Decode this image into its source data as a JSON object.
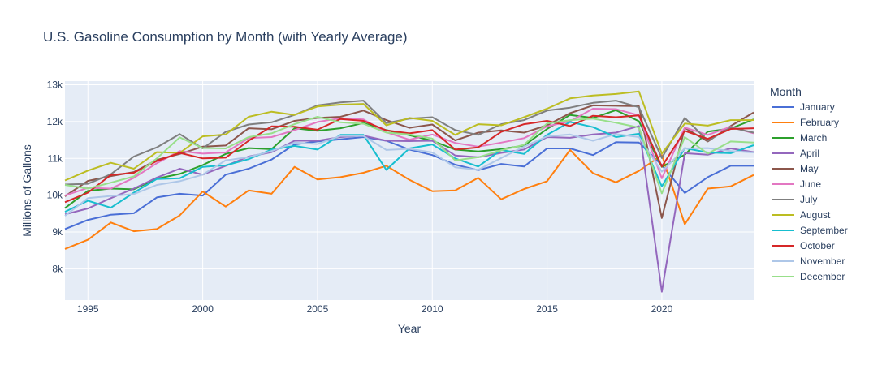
{
  "chart_data": {
    "type": "line",
    "title": "U.S. Gasoline Consumption by Month (with Yearly Average)",
    "xlabel": "Year",
    "ylabel": "Millions of Gallons",
    "legend_title": "Month",
    "legend_position": "right",
    "grid": true,
    "xlim": [
      1994,
      2024
    ],
    "ylim": [
      7150,
      13100
    ],
    "x_ticks": [
      1995,
      2000,
      2005,
      2010,
      2015,
      2020
    ],
    "y_ticks": [
      {
        "value": 8000,
        "label": "8k"
      },
      {
        "value": 9000,
        "label": "9k"
      },
      {
        "value": 10000,
        "label": "10k"
      },
      {
        "value": 11000,
        "label": "11k"
      },
      {
        "value": 12000,
        "label": "12k"
      },
      {
        "value": 13000,
        "label": "13k"
      }
    ],
    "x": [
      1994,
      1995,
      1996,
      1997,
      1998,
      1999,
      2000,
      2001,
      2002,
      2003,
      2004,
      2005,
      2006,
      2007,
      2008,
      2009,
      2010,
      2011,
      2012,
      2013,
      2014,
      2015,
      2016,
      2017,
      2018,
      2019,
      2020,
      2021,
      2022,
      2023,
      2024
    ],
    "series": [
      {
        "name": "January",
        "color": "#4a6fd6",
        "values": [
          9080,
          9330,
          9470,
          9510,
          9940,
          10040,
          9990,
          10560,
          10720,
          10970,
          11380,
          11460,
          11520,
          11580,
          11480,
          11240,
          11090,
          10830,
          10680,
          10850,
          10780,
          11270,
          11270,
          11090,
          11440,
          11430,
          10820,
          10060,
          10490,
          10800,
          10800
        ]
      },
      {
        "name": "February",
        "color": "#ff7f0e",
        "values": [
          8540,
          8790,
          9260,
          9020,
          9080,
          9450,
          10100,
          9690,
          10130,
          10040,
          10770,
          10430,
          10490,
          10610,
          10800,
          10420,
          10110,
          10130,
          10470,
          9890,
          10170,
          10380,
          11230,
          10600,
          10350,
          10660,
          11090,
          9210,
          10180,
          10240,
          10550
        ]
      },
      {
        "name": "March",
        "color": "#2ca02c",
        "values": [
          9650,
          10120,
          10180,
          10160,
          10450,
          10580,
          10820,
          11120,
          11280,
          11250,
          11820,
          11750,
          11820,
          11960,
          11770,
          11630,
          11480,
          11240,
          11190,
          11250,
          11350,
          11800,
          12180,
          12100,
          12310,
          12010,
          10770,
          11100,
          11730,
          11810,
          12060
        ]
      },
      {
        "name": "April",
        "color": "#9467bd",
        "values": [
          9480,
          9640,
          9920,
          10180,
          10480,
          10720,
          10560,
          10800,
          11050,
          11170,
          11480,
          11480,
          11580,
          11620,
          11480,
          11470,
          11480,
          11080,
          11030,
          11150,
          11240,
          11580,
          11560,
          11650,
          11700,
          11880,
          7380,
          11140,
          11100,
          11270,
          11170
        ]
      },
      {
        "name": "May",
        "color": "#8c564b",
        "values": [
          9970,
          10390,
          10520,
          10630,
          10960,
          11120,
          11320,
          11350,
          11820,
          11790,
          12020,
          12100,
          12130,
          12300,
          12040,
          11830,
          11920,
          11490,
          11700,
          11760,
          11700,
          11900,
          12230,
          12440,
          12430,
          12420,
          9380,
          11830,
          11460,
          11880,
          12250
        ]
      },
      {
        "name": "June",
        "color": "#e377c2",
        "values": [
          9990,
          10200,
          10180,
          10470,
          10870,
          11200,
          11130,
          11160,
          11550,
          11580,
          11770,
          11990,
          12090,
          12060,
          11710,
          11510,
          11650,
          11420,
          11320,
          11430,
          11550,
          11870,
          12010,
          12350,
          12340,
          12170,
          10460,
          11840,
          11640,
          11860,
          11680
        ]
      },
      {
        "name": "July",
        "color": "#7f7f7f",
        "values": [
          10290,
          10310,
          10570,
          11050,
          11300,
          11660,
          11270,
          11720,
          11920,
          11980,
          12180,
          12440,
          12520,
          12570,
          11960,
          12080,
          12120,
          11770,
          11640,
          11930,
          12040,
          12300,
          12380,
          12510,
          12570,
          12390,
          11010,
          12100,
          11480,
          11840,
          11700
        ]
      },
      {
        "name": "August",
        "color": "#bcbd22",
        "values": [
          10400,
          10670,
          10880,
          10720,
          11170,
          11150,
          11600,
          11650,
          12130,
          12270,
          12180,
          12410,
          12460,
          12480,
          11900,
          12100,
          12020,
          11640,
          11930,
          11900,
          12120,
          12350,
          12630,
          12710,
          12750,
          12820,
          11130,
          11950,
          11890,
          12040,
          12040
        ]
      },
      {
        "name": "September",
        "color": "#17becf",
        "values": [
          9550,
          9850,
          9660,
          10070,
          10440,
          10460,
          10770,
          10810,
          10980,
          11240,
          11340,
          11240,
          11640,
          11640,
          10690,
          11270,
          11380,
          11000,
          10780,
          11230,
          11120,
          11640,
          11990,
          11850,
          11580,
          11670,
          10240,
          11280,
          11160,
          11140,
          11360
        ]
      },
      {
        "name": "October",
        "color": "#d62728",
        "values": [
          9810,
          10070,
          10550,
          10610,
          10930,
          11150,
          11000,
          11020,
          11480,
          11870,
          11860,
          11780,
          12070,
          12020,
          11760,
          11680,
          11770,
          11240,
          11300,
          11720,
          11930,
          12020,
          11880,
          12160,
          12120,
          12170,
          10780,
          11750,
          11530,
          11800,
          11820
        ]
      },
      {
        "name": "November",
        "color": "#aec7e8",
        "values": [
          9440,
          9920,
          9980,
          10030,
          10280,
          10380,
          10560,
          10950,
          11030,
          11200,
          11430,
          11390,
          11610,
          11610,
          11230,
          11260,
          11160,
          10760,
          10690,
          11010,
          11320,
          11600,
          11650,
          11480,
          11660,
          11580,
          10640,
          11270,
          11280,
          11200,
          11160
        ]
      },
      {
        "name": "December",
        "color": "#98df8a",
        "values": [
          10280,
          10180,
          10340,
          10510,
          11000,
          11570,
          11280,
          11270,
          11580,
          11680,
          11930,
          12130,
          11980,
          11940,
          11700,
          11650,
          11540,
          10950,
          11030,
          11220,
          11370,
          11950,
          12040,
          12080,
          11970,
          11840,
          10050,
          11580,
          11130,
          11460,
          11430
        ]
      }
    ]
  }
}
